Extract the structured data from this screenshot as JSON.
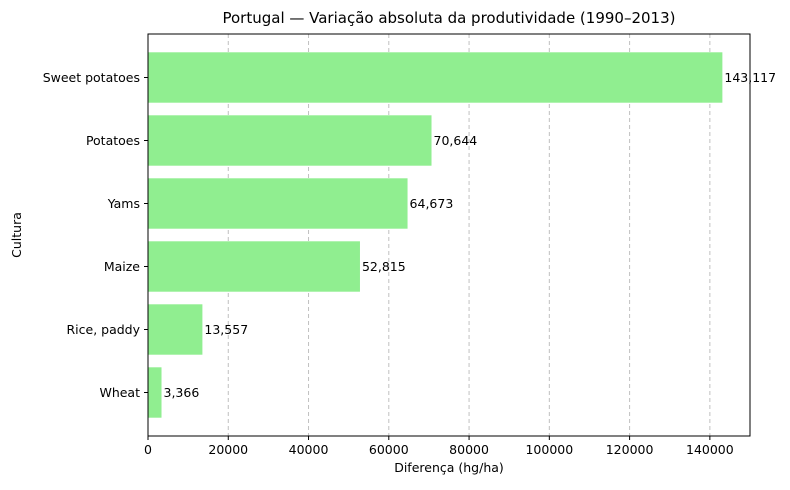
{
  "chart_data": {
    "type": "bar",
    "orientation": "horizontal",
    "title": "Portugal — Variação absoluta da produtividade (1990–2013)",
    "xlabel": "Diferença (hg/ha)",
    "ylabel": "Cultura",
    "categories": [
      "Sweet potatoes",
      "Potatoes",
      "Yams",
      "Maize",
      "Rice, paddy",
      "Wheat"
    ],
    "values": [
      143117,
      70644,
      64673,
      52815,
      13557,
      3366
    ],
    "data_labels": [
      "143,117",
      "70,644",
      "64,673",
      "52,815",
      "13,557",
      "3,366"
    ],
    "xlim": [
      0,
      150000
    ],
    "xticks": [
      0,
      20000,
      40000,
      60000,
      80000,
      100000,
      120000,
      140000
    ],
    "xtick_labels": [
      "0",
      "20000",
      "40000",
      "60000",
      "80000",
      "100000",
      "120000",
      "140000"
    ],
    "grid": "x-dashed",
    "bar_color": "#90ee90",
    "grid_color": "#c0c0c0"
  }
}
